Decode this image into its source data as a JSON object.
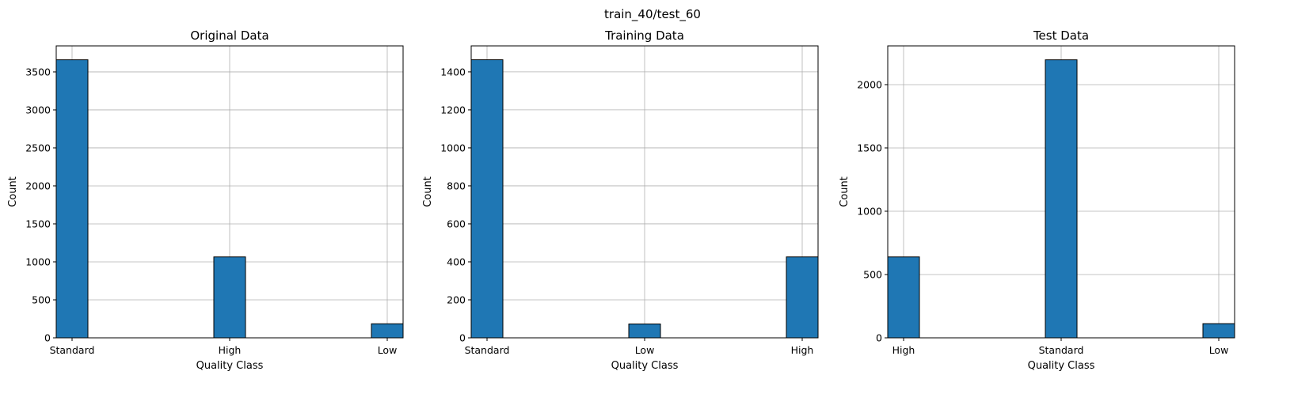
{
  "figure": {
    "suptitle": "train_40/test_60"
  },
  "colors": {
    "bar_fill": "#1f77b4",
    "bar_edge": "#000000",
    "grid": "#b0b0b0",
    "spine": "#000000"
  },
  "chart_data": [
    {
      "type": "bar",
      "title": "Original Data",
      "xlabel": "Quality Class",
      "ylabel": "Count",
      "categories": [
        "Standard",
        "High",
        "Low"
      ],
      "values": [
        3660,
        1065,
        185
      ],
      "ylim": [
        0,
        3843
      ],
      "yticks": [
        0,
        500,
        1000,
        1500,
        2000,
        2500,
        3000,
        3500
      ],
      "grid": true,
      "legend": "none"
    },
    {
      "type": "bar",
      "title": "Training Data",
      "xlabel": "Quality Class",
      "ylabel": "Count",
      "categories": [
        "Standard",
        "Low",
        "High"
      ],
      "values": [
        1464,
        73,
        426
      ],
      "ylim": [
        0,
        1537
      ],
      "yticks": [
        0,
        200,
        400,
        600,
        800,
        1000,
        1200,
        1400
      ],
      "grid": true,
      "legend": "none"
    },
    {
      "type": "bar",
      "title": "Test Data",
      "xlabel": "Quality Class",
      "ylabel": "Count",
      "categories": [
        "High",
        "Standard",
        "Low"
      ],
      "values": [
        639,
        2196,
        112
      ],
      "ylim": [
        0,
        2306
      ],
      "yticks": [
        0,
        500,
        1000,
        1500,
        2000
      ],
      "grid": true,
      "legend": "none"
    }
  ]
}
